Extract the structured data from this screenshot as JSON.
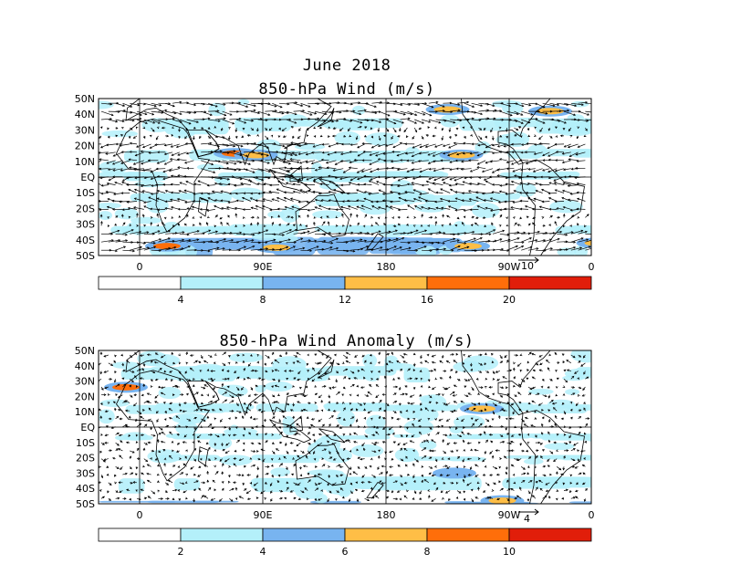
{
  "header": {
    "title": "June 2018"
  },
  "panels": [
    {
      "title": "850-hPa Wind (m/s)",
      "lat_labels": [
        "50N",
        "40N",
        "30N",
        "20N",
        "10N",
        "EQ",
        "10S",
        "20S",
        "30S",
        "40S",
        "50S"
      ],
      "lon_labels": [
        "0",
        "90E",
        "180",
        "90W",
        "0"
      ],
      "ref_vector": "10",
      "colorbar": {
        "labels": [
          "4",
          "8",
          "12",
          "16",
          "20"
        ],
        "colors": [
          "#ffffff",
          "#b4f0fa",
          "#78b4f0",
          "#ffbe46",
          "#ff6e0a",
          "#e11e0a"
        ]
      },
      "speed_hotspots": [
        {
          "lon": 70,
          "lat": 15,
          "level": 4
        },
        {
          "lon": 85,
          "lat": 14,
          "level": 3
        },
        {
          "lon": 225,
          "lat": 43,
          "level": 3
        },
        {
          "lon": 300,
          "lat": 42,
          "level": 3
        },
        {
          "lon": 20,
          "lat": -44,
          "level": 4
        },
        {
          "lon": 100,
          "lat": -45,
          "level": 3
        },
        {
          "lon": 240,
          "lat": -44,
          "level": 3
        },
        {
          "lon": 335,
          "lat": -42,
          "level": 3
        },
        {
          "lon": 235,
          "lat": 14,
          "level": 3
        }
      ]
    },
    {
      "title": "850-hPa Wind Anomaly (m/s)",
      "lat_labels": [
        "50N",
        "40N",
        "30N",
        "20N",
        "10N",
        "EQ",
        "10S",
        "20S",
        "30S",
        "40S",
        "50S"
      ],
      "lon_labels": [
        "0",
        "90E",
        "180",
        "90W",
        "0"
      ],
      "ref_vector": "4",
      "colorbar": {
        "labels": [
          "2",
          "4",
          "6",
          "8",
          "10"
        ],
        "colors": [
          "#ffffff",
          "#b4f0fa",
          "#78b4f0",
          "#ffbe46",
          "#ff6e0a",
          "#e11e0a"
        ]
      },
      "speed_hotspots": [
        {
          "lon": -10,
          "lat": 26,
          "level": 4
        },
        {
          "lon": 358,
          "lat": 27,
          "level": 4
        },
        {
          "lon": 250,
          "lat": 12,
          "level": 3
        },
        {
          "lon": 265,
          "lat": -48,
          "level": 3
        },
        {
          "lon": 230,
          "lat": -30,
          "level": 2
        }
      ]
    }
  ]
}
